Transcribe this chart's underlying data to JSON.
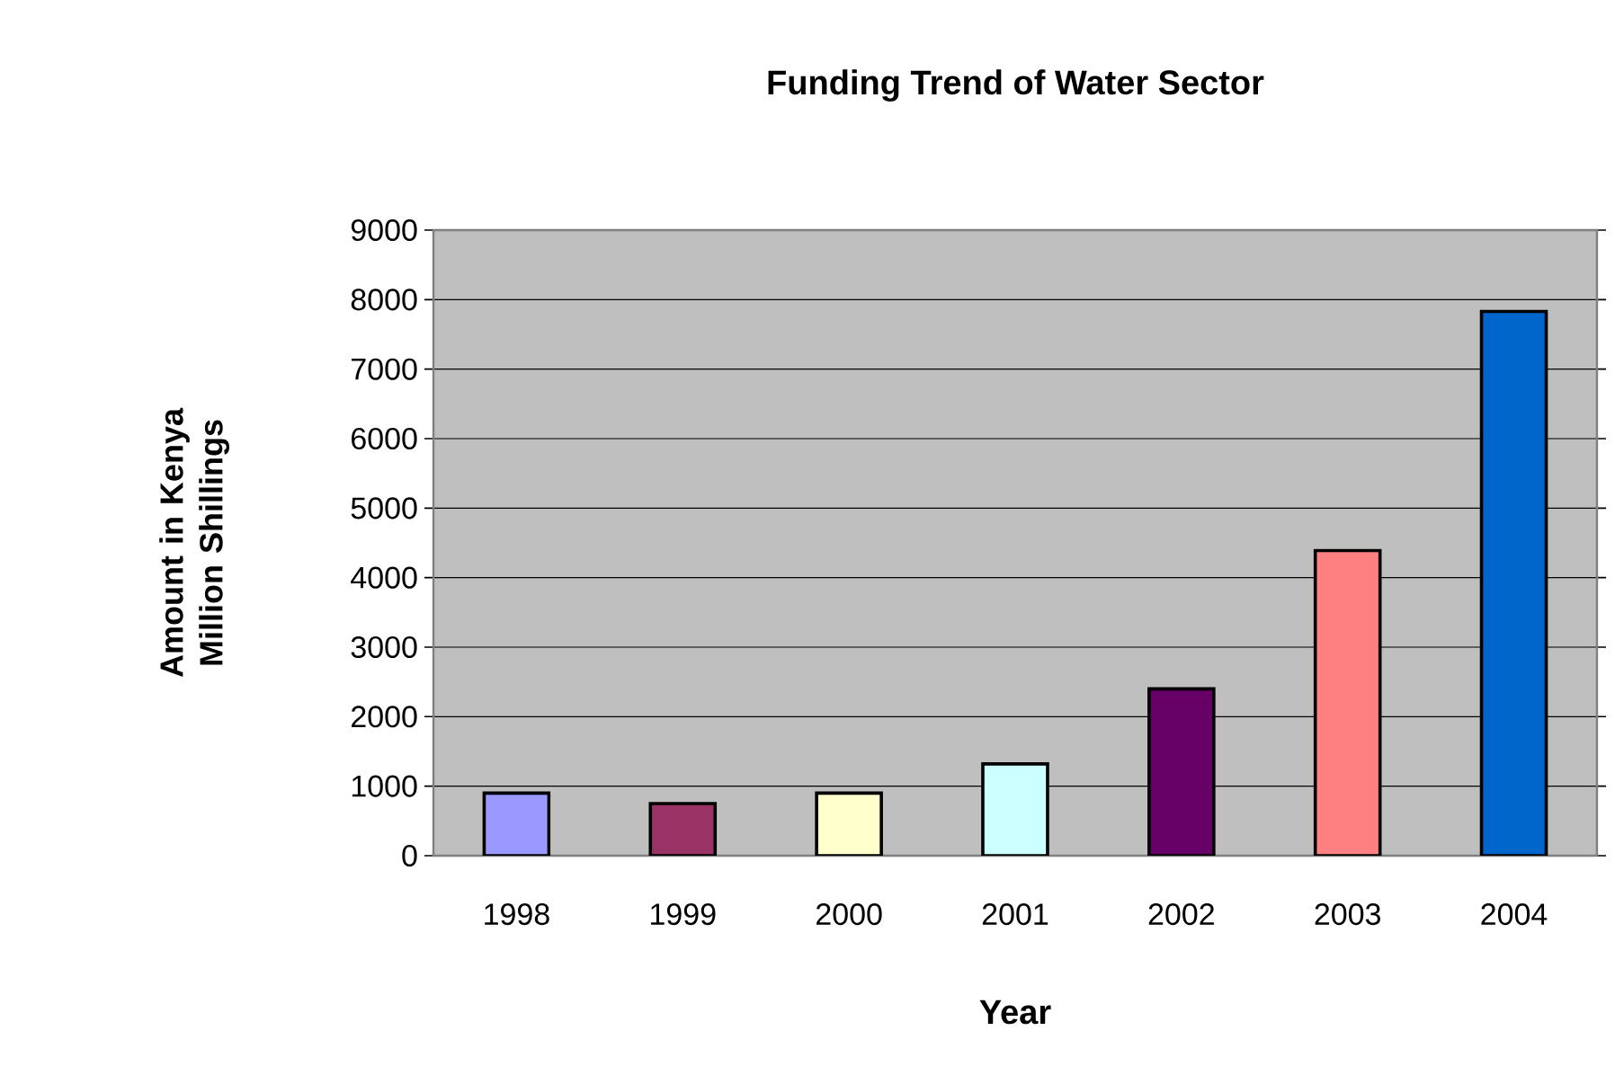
{
  "chart_data": {
    "type": "bar",
    "title": "Funding Trend of Water Sector",
    "xlabel": "Year",
    "ylabel": "Amount in Kenya Million Shillings",
    "categories": [
      "1998",
      "1999",
      "2000",
      "2001",
      "2002",
      "2003",
      "2004"
    ],
    "values": [
      900,
      750,
      900,
      1320,
      2400,
      4390,
      7830
    ],
    "colors": [
      "#9999ff",
      "#993366",
      "#ffffcc",
      "#ccffff",
      "#660066",
      "#ff8080",
      "#0066cc"
    ],
    "ylim": [
      0,
      9000
    ],
    "yticks": [
      0,
      1000,
      2000,
      3000,
      4000,
      5000,
      6000,
      7000,
      8000,
      9000
    ],
    "grid": "y"
  }
}
